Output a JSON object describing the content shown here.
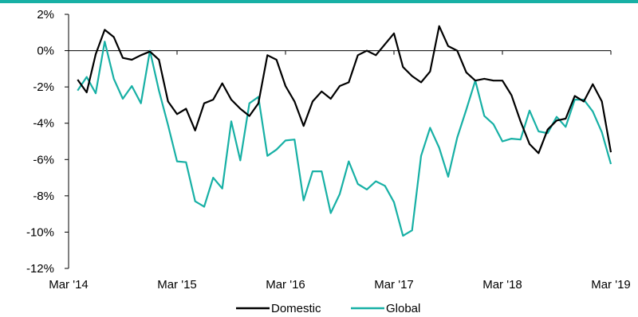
{
  "colors": {
    "domestic": "#000000",
    "global": "#17b0a5",
    "topbar": "#17b0a5",
    "axis": "#000000"
  },
  "chart_data": {
    "type": "line",
    "title": "",
    "xlabel": "",
    "ylabel": "",
    "ylim": [
      -0.12,
      0.02
    ],
    "yticks": [
      0.02,
      0,
      -0.02,
      -0.04,
      -0.06,
      -0.08,
      -0.1,
      -0.12
    ],
    "ytick_labels": [
      "2%",
      "0%",
      "-2%",
      "-4%",
      "-6%",
      "-8%",
      "-10%",
      "-12%"
    ],
    "xlim": [
      "2014-03",
      "2019-03"
    ],
    "xticks": [
      "2014-03",
      "2015-03",
      "2016-03",
      "2017-03",
      "2018-03",
      "2019-03"
    ],
    "xtick_labels": [
      "Mar '14",
      "Mar '15",
      "Mar '16",
      "Mar '17",
      "Mar '18",
      "Mar '19"
    ],
    "grid": false,
    "legend_position": "bottom",
    "x": [
      "2014-04",
      "2014-05",
      "2014-06",
      "2014-07",
      "2014-08",
      "2014-09",
      "2014-10",
      "2014-11",
      "2014-12",
      "2015-01",
      "2015-02",
      "2015-03",
      "2015-04",
      "2015-05",
      "2015-06",
      "2015-07",
      "2015-08",
      "2015-09",
      "2015-10",
      "2015-11",
      "2015-12",
      "2016-01",
      "2016-02",
      "2016-03",
      "2016-04",
      "2016-05",
      "2016-06",
      "2016-07",
      "2016-08",
      "2016-09",
      "2016-10",
      "2016-11",
      "2016-12",
      "2017-01",
      "2017-02",
      "2017-03",
      "2017-04",
      "2017-05",
      "2017-06",
      "2017-07",
      "2017-08",
      "2017-09",
      "2017-10",
      "2017-11",
      "2017-12",
      "2018-01",
      "2018-02",
      "2018-03",
      "2018-04",
      "2018-05",
      "2018-06",
      "2018-07",
      "2018-08",
      "2018-09",
      "2018-10",
      "2018-11",
      "2018-12",
      "2019-01",
      "2019-02",
      "2019-03"
    ],
    "series": [
      {
        "name": "Domestic",
        "color": "#000000",
        "values": [
          -0.016,
          -0.023,
          -0.002,
          0.0115,
          0.0075,
          -0.004,
          -0.005,
          -0.0025,
          -0.0005,
          -0.005,
          -0.028,
          -0.035,
          -0.032,
          -0.044,
          -0.029,
          -0.027,
          -0.018,
          -0.027,
          -0.032,
          -0.036,
          -0.029,
          -0.0025,
          -0.005,
          -0.0195,
          -0.028,
          -0.0415,
          -0.028,
          -0.0225,
          -0.0265,
          -0.0195,
          -0.0175,
          -0.0025,
          0.0,
          -0.0025,
          0.0035,
          0.0095,
          -0.009,
          -0.014,
          -0.0175,
          -0.0115,
          0.0135,
          0.0025,
          0.0,
          -0.012,
          -0.0165,
          -0.0155,
          -0.0165,
          -0.0165,
          -0.0245,
          -0.039,
          -0.0515,
          -0.0565,
          -0.0435,
          -0.0385,
          -0.0375,
          -0.025,
          -0.028,
          -0.0185,
          -0.028,
          -0.056
        ]
      },
      {
        "name": "Global",
        "color": "#17b0a5",
        "values": [
          -0.022,
          -0.0145,
          -0.0235,
          0.005,
          -0.0155,
          -0.0265,
          -0.0195,
          -0.029,
          0.0,
          -0.022,
          -0.041,
          -0.061,
          -0.0615,
          -0.083,
          -0.086,
          -0.07,
          -0.076,
          -0.039,
          -0.0605,
          -0.029,
          -0.0255,
          -0.058,
          -0.0545,
          -0.0495,
          -0.049,
          -0.0825,
          -0.0665,
          -0.0665,
          -0.0895,
          -0.079,
          -0.061,
          -0.0735,
          -0.0765,
          -0.072,
          -0.0745,
          -0.0835,
          -0.102,
          -0.099,
          -0.058,
          -0.0425,
          -0.0535,
          -0.0695,
          -0.048,
          -0.0325,
          -0.0165,
          -0.036,
          -0.0405,
          -0.05,
          -0.0485,
          -0.049,
          -0.033,
          -0.0445,
          -0.0455,
          -0.0365,
          -0.042,
          -0.027,
          -0.027,
          -0.0335,
          -0.045,
          -0.0625
        ]
      }
    ]
  }
}
